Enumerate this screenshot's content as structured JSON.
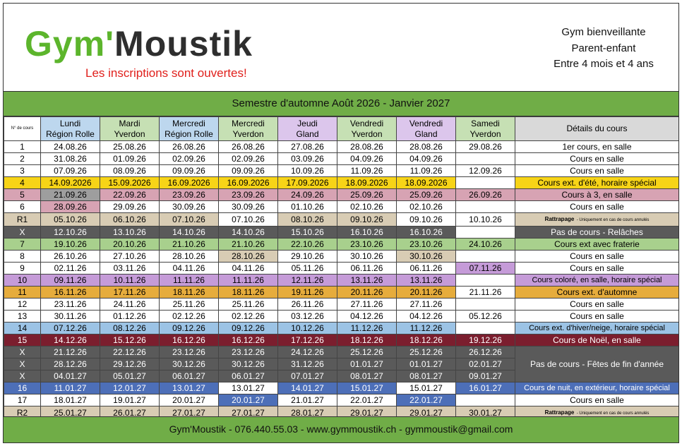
{
  "header": {
    "logo_green": "Gym'",
    "logo_dark": "Moustik",
    "tagline": "Les inscriptions sont ouvertes!",
    "info": [
      "Gym bienveillante",
      "Parent-enfant",
      "Entre 4 mois et 4 ans"
    ]
  },
  "table": {
    "title": "Semestre d'automne Août 2026 - Janvier 2027",
    "number_header": "N° de cours",
    "columns": [
      [
        "Lundi",
        "Région Rolle"
      ],
      [
        "Mardi",
        "Yverdon"
      ],
      [
        "Mercredi",
        "Région Rolle"
      ],
      [
        "Mercredi",
        "Yverdon"
      ],
      [
        "Jeudi",
        "Gland"
      ],
      [
        "Vendredi",
        "Yverdon"
      ],
      [
        "Vendredi",
        "Gland"
      ],
      [
        "Samedi",
        "Yverdon"
      ]
    ],
    "details_header": "Détails du cours",
    "rows": [
      {
        "n": "1",
        "dates": [
          "24.08.26",
          "25.08.26",
          "26.08.26",
          "26.08.26",
          "27.08.26",
          "28.08.26",
          "28.08.26",
          "29.08.26"
        ],
        "details": "1er cours, en salle"
      },
      {
        "n": "2",
        "dates": [
          "31.08.26",
          "01.09.26",
          "02.09.26",
          "02.09.26",
          "03.09.26",
          "04.09.26",
          "04.09.26",
          null
        ],
        "details": "Cours en salle"
      },
      {
        "n": "3",
        "dates": [
          "07.09.26",
          "08.09.26",
          "09.09.26",
          "09.09.26",
          "10.09.26",
          "11.09.26",
          "11.09.26",
          "12.09.26"
        ],
        "details": "Cours en salle"
      },
      {
        "n": "4",
        "dates": [
          "14.09.2026",
          "15.09.2026",
          "16.09.2026",
          "16.09.2026",
          "17.09.2026",
          "18.09.2026",
          "18.09.2026",
          null
        ],
        "details": "Cours ext. d'été, horaire spécial"
      },
      {
        "n": "5",
        "dates": [
          "21.09.26",
          "22.09.26",
          "23.09.26",
          "23.09.26",
          "24.09.26",
          "25.09.26",
          "25.09.26",
          "26.09.26"
        ],
        "details": "Cours à 3, en salle"
      },
      {
        "n": "6",
        "dates": [
          "28.09.26",
          "29.09.26",
          "30.09.26",
          "30.09.26",
          "01.10.26",
          "02.10.26",
          "02.10.26",
          null
        ],
        "details": "Cours en salle"
      },
      {
        "n": "R1",
        "dates": [
          "05.10.26",
          "06.10.26",
          "07.10.26",
          "07.10.26",
          "08.10.26",
          "09.10.26",
          "09.10.26",
          "10.10.26"
        ],
        "details_label": "Rattrapage",
        "details": "- Uniquement en cas de cours annulés"
      },
      {
        "n": "X",
        "dates": [
          "12.10.26",
          "13.10.26",
          "14.10.26",
          "14.10.26",
          "15.10.26",
          "16.10.26",
          "16.10.26",
          null
        ],
        "details": "Pas de cours - Relâches"
      },
      {
        "n": "7",
        "dates": [
          "19.10.26",
          "20.10.26",
          "21.10.26",
          "21.10.26",
          "22.10.26",
          "23.10.26",
          "23.10.26",
          "24.10.26"
        ],
        "details": "Cours ext avec fraterie"
      },
      {
        "n": "8",
        "dates": [
          "26.10.26",
          "27.10.26",
          "28.10.26",
          "28.10.26",
          "29.10.26",
          "30.10.26",
          "30.10.26",
          null
        ],
        "details": "Cours en salle"
      },
      {
        "n": "9",
        "dates": [
          "02.11.26",
          "03.11.26",
          "04.11.26",
          "04.11.26",
          "05.11.26",
          "06.11.26",
          "06.11.26",
          "07.11.26"
        ],
        "details": "Cours en salle"
      },
      {
        "n": "10",
        "dates": [
          "09.11.26",
          "10.11.26",
          "11.11.26",
          "11.11.26",
          "12.11.26",
          "13.11.26",
          "13.11.26",
          null
        ],
        "details": "Cours coloré, en salle, horaire spécial"
      },
      {
        "n": "11",
        "dates": [
          "16.11.26",
          "17.11.26",
          "18.11.26",
          "18.11.26",
          "19.11.26",
          "20.11.26",
          "20.11.26",
          "21.11.26"
        ],
        "details": "Cours ext. d'automne"
      },
      {
        "n": "12",
        "dates": [
          "23.11.26",
          "24.11.26",
          "25.11.26",
          "25.11.26",
          "26.11.26",
          "27.11.26",
          "27.11.26",
          null
        ],
        "details": "Cours en salle"
      },
      {
        "n": "13",
        "dates": [
          "30.11.26",
          "01.12.26",
          "02.12.26",
          "02.12.26",
          "03.12.26",
          "04.12.26",
          "04.12.26",
          "05.12.26"
        ],
        "details": "Cours en salle"
      },
      {
        "n": "14",
        "dates": [
          "07.12.26",
          "08.12.26",
          "09.12.26",
          "09.12.26",
          "10.12.26",
          "11.12.26",
          "11.12.26",
          null
        ],
        "details": "Cours ext. d'hiver/neige, horaire spécial"
      },
      {
        "n": "15",
        "dates": [
          "14.12.26",
          "15.12.26",
          "16.12.26",
          "16.12.26",
          "17.12.26",
          "18.12.26",
          "18.12.26",
          "19.12.26"
        ],
        "details": "Cours de Noël, en salle"
      },
      {
        "n": "X",
        "dates": [
          "21.12.26",
          "22.12.26",
          "23.12.26",
          "23.12.26",
          "24.12.26",
          "25.12.26",
          "25.12.26",
          "26.12.26"
        ],
        "details": "Pas de cours - Fêtes de fin d'année"
      },
      {
        "n": "X",
        "dates": [
          "28.12.26",
          "29.12.26",
          "30.12.26",
          "30.12.26",
          "31.12.26",
          "01.01.27",
          "01.01.27",
          "02.01.27"
        ]
      },
      {
        "n": "X",
        "dates": [
          "04.01.27",
          "05.01.27",
          "06.01.27",
          "06.01.27",
          "07.01.27",
          "08.01.27",
          "08.01.27",
          "09.01.27"
        ]
      },
      {
        "n": "16",
        "dates": [
          "11.01.27",
          "12.01.27",
          "13.01.27",
          "13.01.27",
          "14.01.27",
          "15.01.27",
          "15.01.27",
          "16.01.27"
        ],
        "details": "Cours de nuit, en extérieur, horaire spécial"
      },
      {
        "n": "17",
        "dates": [
          "18.01.27",
          "19.01.27",
          "20.01.27",
          "20.01.27",
          "21.01.27",
          "22.01.27",
          "22.01.27",
          null
        ],
        "details": "Cours en salle"
      },
      {
        "n": "R2",
        "dates": [
          "25.01.27",
          "26.01.27",
          "27.01.27",
          "27.01.27",
          "28.01.27",
          "29.01.27",
          "29.01.27",
          "30.01.27"
        ],
        "details_label": "Rattrapage",
        "details": "- Uniquement en cas de cours annulés"
      }
    ]
  },
  "footer": "Gym'Moustik -  076.440.55.03 - www.gymmoustik.ch - gymmoustik@gmail.com"
}
